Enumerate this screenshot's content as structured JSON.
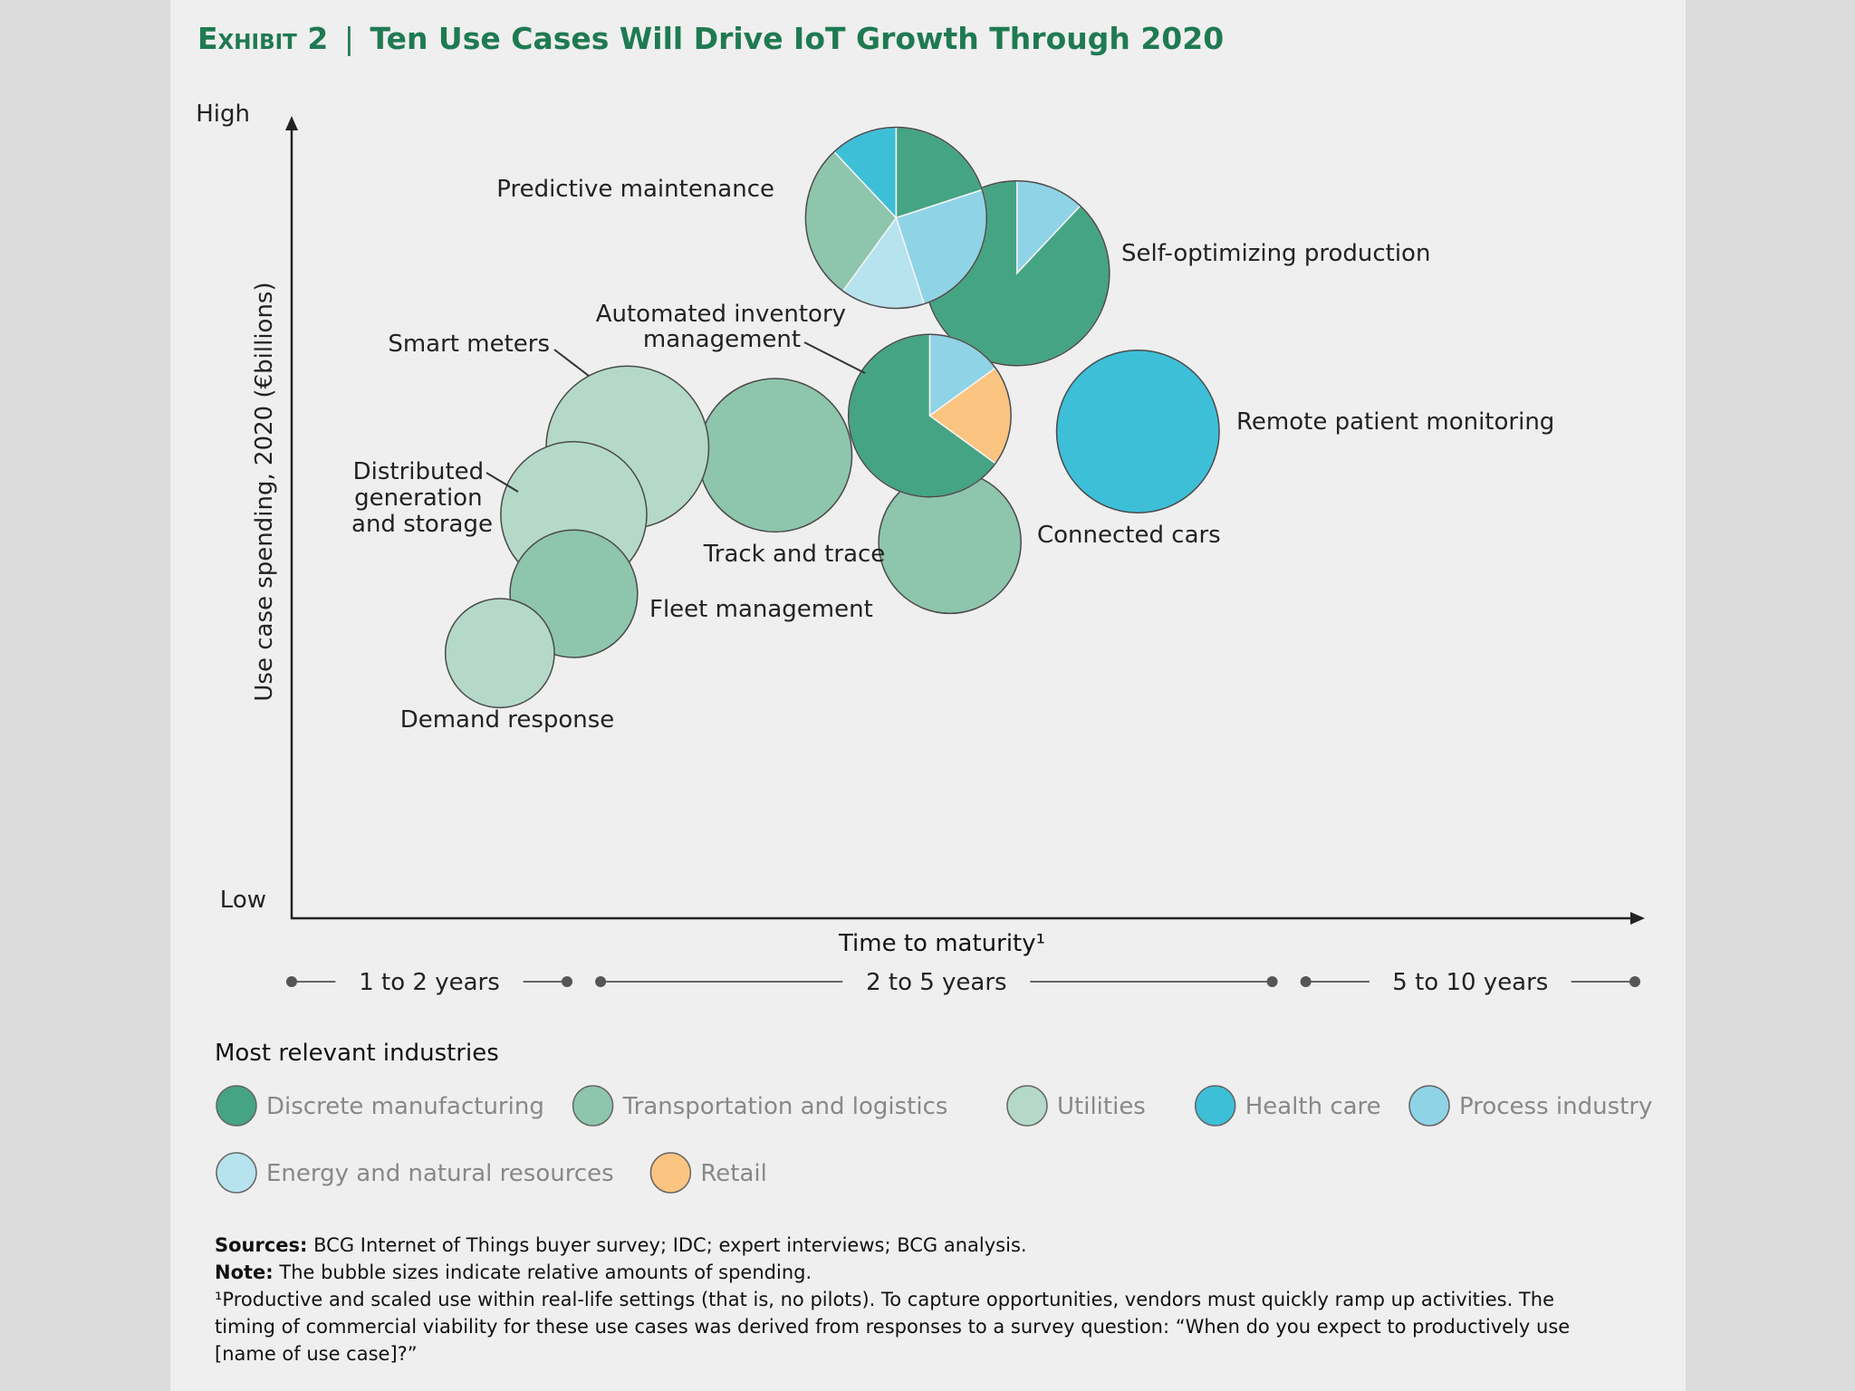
{
  "exhibit": {
    "label": "Exhibit 2",
    "title": "Ten Use Cases Will Drive IoT Growth Through 2020"
  },
  "colors": {
    "title": "#1f7a52",
    "Discrete manufacturing": "#45a483",
    "Transportation and logistics": "#8ec5ad",
    "Utilities": "#b4d9c9",
    "Health care": "#3ebfd8",
    "Process industry": "#8fd3e6",
    "Energy and natural resources": "#b6e3ee",
    "Retail": "#fbc480"
  },
  "chart_data": {
    "type": "bubble",
    "title": "Ten Use Cases Will Drive IoT Growth Through 2020",
    "ylabel": "Use case spending, 2020 (€billions)",
    "xlabel": "Time to maturity¹",
    "y_high_label": "High",
    "y_low_label": "Low",
    "x_range": [
      0,
      10
    ],
    "y_range": [
      0,
      10
    ],
    "time_ranges": [
      {
        "label": "1 to 2 years",
        "from": 0,
        "to": 2.05
      },
      {
        "label": "2 to 5 years",
        "from": 2.3,
        "to": 7.3
      },
      {
        "label": "5 to 10 years",
        "from": 7.55,
        "to": 10
      }
    ],
    "legend_title": "Most relevant industries",
    "legend": [
      "Discrete manufacturing",
      "Transportation and logistics",
      "Utilities",
      "Health care",
      "Process industry",
      "Energy and natural resources",
      "Retail"
    ],
    "bubbles": [
      {
        "name": "Self-optimizing production",
        "x": 5.4,
        "y": 8.15,
        "size": 1.0,
        "slices": [
          {
            "industry": "Process industry",
            "share": 0.12
          },
          {
            "industry": "Discrete manufacturing",
            "share": 0.88
          }
        ]
      },
      {
        "name": "Predictive maintenance",
        "x": 4.5,
        "y": 8.85,
        "size": 0.98,
        "slices": [
          {
            "industry": "Discrete manufacturing",
            "share": 0.2
          },
          {
            "industry": "Process industry",
            "share": 0.25
          },
          {
            "industry": "Energy and natural resources",
            "share": 0.15
          },
          {
            "industry": "Transportation and logistics",
            "share": 0.28
          },
          {
            "industry": "Health care",
            "share": 0.12
          }
        ]
      },
      {
        "name": "Remote patient monitoring",
        "x": 6.3,
        "y": 6.15,
        "size": 0.88,
        "slices": [
          {
            "industry": "Health care",
            "share": 1.0
          }
        ]
      },
      {
        "name": "Connected cars",
        "x": 4.9,
        "y": 4.75,
        "size": 0.77,
        "slices": [
          {
            "industry": "Transportation and logistics",
            "share": 1.0
          }
        ]
      },
      {
        "name": "Automated inventory management",
        "x": 4.75,
        "y": 6.35,
        "size": 0.88,
        "slices": [
          {
            "industry": "Process industry",
            "share": 0.15
          },
          {
            "industry": "Retail",
            "share": 0.2
          },
          {
            "industry": "Discrete manufacturing",
            "share": 0.65
          }
        ]
      },
      {
        "name": "Track and trace",
        "x": 3.6,
        "y": 5.85,
        "size": 0.83,
        "slices": [
          {
            "industry": "Transportation and logistics",
            "share": 1.0
          }
        ]
      },
      {
        "name": "Smart meters",
        "x": 2.5,
        "y": 5.95,
        "size": 0.88,
        "slices": [
          {
            "industry": "Utilities",
            "share": 1.0
          }
        ]
      },
      {
        "name": "Distributed generation and storage",
        "x": 2.1,
        "y": 5.1,
        "size": 0.79,
        "slices": [
          {
            "industry": "Utilities",
            "share": 1.0
          }
        ]
      },
      {
        "name": "Fleet management",
        "x": 2.1,
        "y": 4.1,
        "size": 0.69,
        "slices": [
          {
            "industry": "Transportation and logistics",
            "share": 1.0
          }
        ]
      },
      {
        "name": "Demand response",
        "x": 1.55,
        "y": 3.35,
        "size": 0.59,
        "slices": [
          {
            "industry": "Utilities",
            "share": 1.0
          }
        ]
      }
    ]
  },
  "footer": {
    "sources_label": "Sources:",
    "sources_text": " BCG Internet of Things buyer survey; IDC; expert interviews; BCG analysis.",
    "note_label": "Note:",
    "note_text": " The bubble sizes indicate relative amounts of spending.",
    "footnote": "¹Productive and scaled use within real-life settings (that is, no pilots). To capture opportunities, vendors must quickly ramp up activities. The timing of commercial viability for these use cases was derived from responses to a survey question: “When do you expect to productively use [name of use case]?”"
  }
}
